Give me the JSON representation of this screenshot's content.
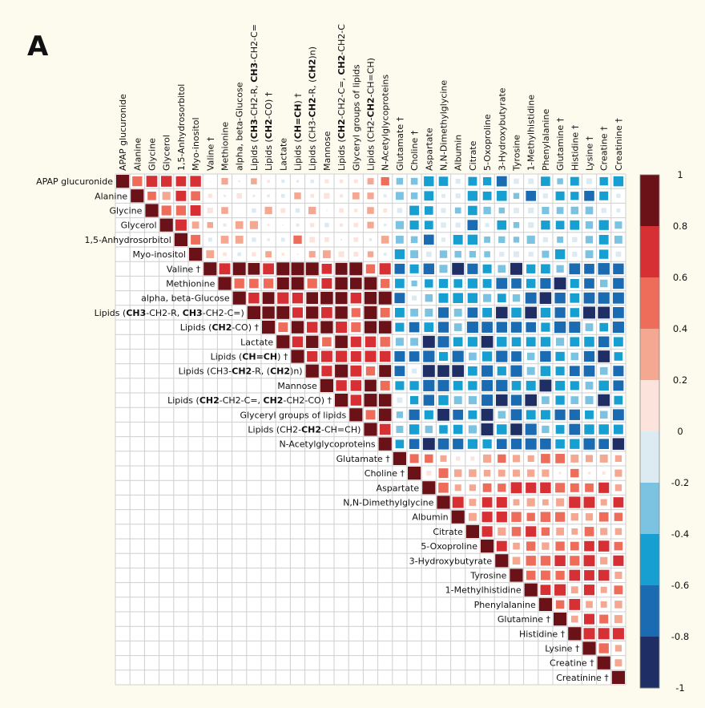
{
  "panel_label": "A",
  "chart_data": {
    "type": "heatmap",
    "subtype": "correlation-matrix-upper-triangle",
    "variables": [
      {
        "parts": [
          [
            "APAP glucuronide",
            false
          ]
        ]
      },
      {
        "parts": [
          [
            "Alanine",
            false
          ]
        ]
      },
      {
        "parts": [
          [
            "Glycine",
            false
          ]
        ]
      },
      {
        "parts": [
          [
            "Glycerol",
            false
          ]
        ]
      },
      {
        "parts": [
          [
            "1,5-Anhydrosorbitol",
            false
          ]
        ]
      },
      {
        "parts": [
          [
            "Myo-inositol",
            false
          ]
        ]
      },
      {
        "parts": [
          [
            "Valine †",
            false
          ]
        ]
      },
      {
        "parts": [
          [
            "Methionine",
            false
          ]
        ]
      },
      {
        "parts": [
          [
            "alpha, beta-Glucose",
            false
          ]
        ]
      },
      {
        "parts": [
          [
            "Lipids (",
            false
          ],
          [
            "CH3",
            true
          ],
          [
            "-CH2-R, ",
            false
          ],
          [
            "CH3",
            true
          ],
          [
            "-CH2-C=)",
            false
          ]
        ]
      },
      {
        "parts": [
          [
            "Lipids (",
            false
          ],
          [
            "CH2",
            true
          ],
          [
            "-CO) †",
            false
          ]
        ]
      },
      {
        "parts": [
          [
            "Lactate",
            false
          ]
        ]
      },
      {
        "parts": [
          [
            "Lipids (",
            false
          ],
          [
            "CH=CH",
            true
          ],
          [
            ") †",
            false
          ]
        ]
      },
      {
        "parts": [
          [
            "Lipids (CH3-",
            false
          ],
          [
            "CH2",
            true
          ],
          [
            "-R, (",
            false
          ],
          [
            "CH2",
            true
          ],
          [
            ")n)",
            false
          ]
        ]
      },
      {
        "parts": [
          [
            "Mannose",
            false
          ]
        ]
      },
      {
        "parts": [
          [
            "Lipids (",
            false
          ],
          [
            "CH2",
            true
          ],
          [
            "-CH2-C=, ",
            false
          ],
          [
            "CH2",
            true
          ],
          [
            "-CH2-CO) †",
            false
          ]
        ]
      },
      {
        "parts": [
          [
            "Glyceryl groups of lipids",
            false
          ]
        ]
      },
      {
        "parts": [
          [
            "Lipids (CH2-",
            false
          ],
          [
            "CH2",
            true
          ],
          [
            "-CH=CH)",
            false
          ]
        ]
      },
      {
        "parts": [
          [
            "N-Acetylglycoproteins",
            false
          ]
        ]
      },
      {
        "parts": [
          [
            "Glutamate †",
            false
          ]
        ]
      },
      {
        "parts": [
          [
            "Choline †",
            false
          ]
        ]
      },
      {
        "parts": [
          [
            "Aspartate",
            false
          ]
        ]
      },
      {
        "parts": [
          [
            "N,N-Dimethylglycine",
            false
          ]
        ]
      },
      {
        "parts": [
          [
            "Albumin",
            false
          ]
        ]
      },
      {
        "parts": [
          [
            "Citrate",
            false
          ]
        ]
      },
      {
        "parts": [
          [
            "5-Oxoproline",
            false
          ]
        ]
      },
      {
        "parts": [
          [
            "3-Hydroxybutyrate",
            false
          ]
        ]
      },
      {
        "parts": [
          [
            "Tyrosine",
            false
          ]
        ]
      },
      {
        "parts": [
          [
            "1-Methylhistidine",
            false
          ]
        ]
      },
      {
        "parts": [
          [
            "Phenylalanine",
            false
          ]
        ]
      },
      {
        "parts": [
          [
            "Glutamine †",
            false
          ]
        ]
      },
      {
        "parts": [
          [
            "Histidine †",
            false
          ]
        ]
      },
      {
        "parts": [
          [
            "Lysine †",
            false
          ]
        ]
      },
      {
        "parts": [
          [
            "Creatine †",
            false
          ]
        ]
      },
      {
        "parts": [
          [
            "Creatinine †",
            false
          ]
        ]
      }
    ],
    "top_labels": [
      {
        "parts": [
          [
            "APAP glucuronide",
            false
          ]
        ]
      },
      {
        "parts": [
          [
            "Alanine",
            false
          ]
        ]
      },
      {
        "parts": [
          [
            "Glycine",
            false
          ]
        ]
      },
      {
        "parts": [
          [
            "Glycerol",
            false
          ]
        ]
      },
      {
        "parts": [
          [
            "1,5-Anhydrosorbitol",
            false
          ]
        ]
      },
      {
        "parts": [
          [
            "Myo-inositol",
            false
          ]
        ]
      },
      {
        "parts": [
          [
            "Valine †",
            false
          ]
        ]
      },
      {
        "parts": [
          [
            "Methionine",
            false
          ]
        ]
      },
      {
        "parts": [
          [
            "alpha, beta-Glucose",
            false
          ]
        ]
      },
      {
        "parts": [
          [
            "Lipids (",
            false
          ],
          [
            "CH3",
            true
          ],
          [
            "-CH2-R, ",
            false
          ],
          [
            "CH3",
            true
          ],
          [
            "-CH2-C=",
            false
          ]
        ]
      },
      {
        "parts": [
          [
            "Lipids (",
            false
          ],
          [
            "CH2",
            true
          ],
          [
            "-CO) †",
            false
          ]
        ]
      },
      {
        "parts": [
          [
            "Lactate",
            false
          ]
        ]
      },
      {
        "parts": [
          [
            "Lipids (",
            false
          ],
          [
            "CH=CH",
            true
          ],
          [
            ") †",
            false
          ]
        ]
      },
      {
        "parts": [
          [
            "Lipids (CH3-",
            false
          ],
          [
            "CH2",
            true
          ],
          [
            "-R, (",
            false
          ],
          [
            "CH2",
            true
          ],
          [
            ")n)",
            false
          ]
        ]
      },
      {
        "parts": [
          [
            "Mannose",
            false
          ]
        ]
      },
      {
        "parts": [
          [
            "Lipids (",
            false
          ],
          [
            "CH2",
            true
          ],
          [
            "-CH2-C=, ",
            false
          ],
          [
            "CH2",
            true
          ],
          [
            "-CH2-C",
            false
          ]
        ]
      },
      {
        "parts": [
          [
            "Glyceryl groups of lipids",
            false
          ]
        ]
      },
      {
        "parts": [
          [
            "Lipids (CH2-",
            false
          ],
          [
            "CH2",
            true
          ],
          [
            "-CH=CH)",
            false
          ]
        ]
      },
      {
        "parts": [
          [
            "N-Acetylglycoproteins",
            false
          ]
        ]
      },
      {
        "parts": [
          [
            "Glutamate †",
            false
          ]
        ]
      },
      {
        "parts": [
          [
            "Choline †",
            false
          ]
        ]
      },
      {
        "parts": [
          [
            "Aspartate",
            false
          ]
        ]
      },
      {
        "parts": [
          [
            "N,N-Dimethylglycine",
            false
          ]
        ]
      },
      {
        "parts": [
          [
            "Albumin",
            false
          ]
        ]
      },
      {
        "parts": [
          [
            "Citrate",
            false
          ]
        ]
      },
      {
        "parts": [
          [
            "5-Oxoproline",
            false
          ]
        ]
      },
      {
        "parts": [
          [
            "3-Hydroxybutyrate",
            false
          ]
        ]
      },
      {
        "parts": [
          [
            "Tyrosine",
            false
          ]
        ]
      },
      {
        "parts": [
          [
            "1-Methylhistidine",
            false
          ]
        ]
      },
      {
        "parts": [
          [
            "Phenylalanine",
            false
          ]
        ]
      },
      {
        "parts": [
          [
            "Glutamine †",
            false
          ]
        ]
      },
      {
        "parts": [
          [
            "Histidine †",
            false
          ]
        ]
      },
      {
        "parts": [
          [
            "Lysine †",
            false
          ]
        ]
      },
      {
        "parts": [
          [
            "Creatine †",
            false
          ]
        ]
      },
      {
        "parts": [
          [
            "Creatinine †",
            false
          ]
        ]
      }
    ],
    "groups": [
      {
        "start": 0,
        "end": 5,
        "within": 0.55
      },
      {
        "start": 6,
        "end": 18,
        "within": 0.75
      },
      {
        "start": 19,
        "end": 34,
        "within": 0.5
      }
    ],
    "correlation_estimates": {
      "group_0_vs_group_1": 0.15,
      "group_0_vs_group_2": -0.35,
      "group_1_vs_group_2": -0.6,
      "glutamate_choline_vs_group_2": 0.3,
      "group_1_vs_glutamate_choline": -0.4,
      "diagonal": 1.0
    },
    "color_scale": {
      "min": -1,
      "max": 1,
      "bins": [
        {
          "from": -1.0,
          "to": -0.8,
          "color": "#1f2f66"
        },
        {
          "from": -0.8,
          "to": -0.6,
          "color": "#1b6bb3"
        },
        {
          "from": -0.6,
          "to": -0.4,
          "color": "#169fd0"
        },
        {
          "from": -0.4,
          "to": -0.2,
          "color": "#7cc3e2"
        },
        {
          "from": -0.2,
          "to": 0.0,
          "color": "#dcebf2"
        },
        {
          "from": 0.0,
          "to": 0.2,
          "color": "#fce4dc"
        },
        {
          "from": 0.2,
          "to": 0.4,
          "color": "#f4a892"
        },
        {
          "from": 0.4,
          "to": 0.6,
          "color": "#ee6c5a"
        },
        {
          "from": 0.6,
          "to": 0.8,
          "color": "#d62f34"
        },
        {
          "from": 0.8,
          "to": 1.0,
          "color": "#6b1218"
        }
      ],
      "tick_labels": [
        "1",
        "0.8",
        "0.6",
        "0.4",
        "0.2",
        "0",
        "-0.2",
        "-0.4",
        "-0.6",
        "-0.8",
        "-1"
      ],
      "tick_values": [
        1,
        0.8,
        0.6,
        0.4,
        0.2,
        0,
        -0.2,
        -0.4,
        -0.6,
        -0.8,
        -1
      ]
    }
  }
}
